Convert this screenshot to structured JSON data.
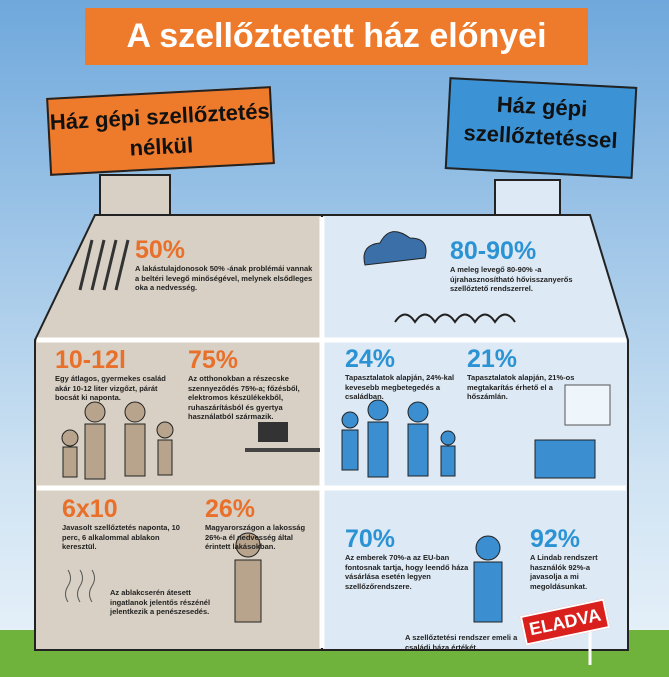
{
  "title": "A szellőztetett ház előnyei",
  "left_banner": "Ház gépi szellőztetés nélkül",
  "right_banner": "Ház gépi szellőztetéssel",
  "left_panels": [
    {
      "stat": "50%",
      "text": "A lakástulajdonosok 50% -ának problémái vannak a beltéri levegő minőségével, melynek elsődleges oka a nedvesség."
    },
    {
      "stat": "10-12l",
      "text": "Egy átlagos, gyermekes család akár 10-12 liter vizgőzt, párát bocsát ki naponta."
    },
    {
      "stat": "75%",
      "text": "Az otthonokban a részecske szennyeződés 75%-a; főzésből, elektromos készülékekből, ruhaszárításból és gyertya használatból származik."
    },
    {
      "stat": "6x10",
      "text": "Javasolt szellőztetés naponta, 10 perc, 6 alkalommal ablakon keresztül."
    },
    {
      "stat": "26%",
      "text": "Magyarországon a lakosság 26%-a él nedvesség által érintett lakásokban."
    }
  ],
  "mold_note": "Az ablakcserén átesett ingatlanok jelentős részénél jelentkezik a penészesedés.",
  "right_panels": [
    {
      "stat": "80-90%",
      "text": "A meleg levegő 80-90% -a újrahasznosítható hővisszanyerős szellőztető rendszerrel."
    },
    {
      "stat": "24%",
      "text": "Tapasztalatok alapján, 24%-kal kevesebb megbetegedés a családban."
    },
    {
      "stat": "21%",
      "text": "Tapasztalatok alapján, 21%-os megtakarítás érhető el a hőszámlán."
    },
    {
      "stat": "70%",
      "text": "Az emberek 70%-a az EU-ban fontosnak tartja, hogy leendő háza vásárlása esetén legyen szellőzőrendszere."
    },
    {
      "stat": "92%",
      "text": "A Lindab rendszert használók 92%-a javasolja a mi megoldásunkat."
    }
  ],
  "footer_note": "A szellőztetési rendszer emeli a családi háza értékét.",
  "sign": "ELADVA"
}
